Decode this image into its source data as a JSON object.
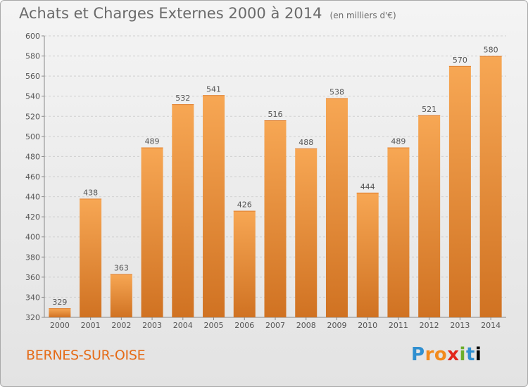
{
  "header": {
    "title": "Achats et Charges Externes 2000 à 2014",
    "unit": "(en milliers d'€)"
  },
  "footer": {
    "commune": "BERNES-SUR-OISE",
    "logo": "Proxiti"
  },
  "colors": {
    "bar_light": "#f7a754",
    "bar_dark": "#d07222",
    "axis_text": "#555555",
    "title_text": "#6a6a6a",
    "commune_text": "#e56b17"
  },
  "chart_data": {
    "type": "bar",
    "categories": [
      "2000",
      "2001",
      "2002",
      "2003",
      "2004",
      "2005",
      "2006",
      "2007",
      "2008",
      "2009",
      "2010",
      "2011",
      "2012",
      "2013",
      "2014"
    ],
    "values": [
      329,
      438,
      363,
      489,
      532,
      541,
      426,
      516,
      488,
      538,
      444,
      489,
      521,
      570,
      580
    ],
    "ylim": [
      320,
      600
    ],
    "yticks": [
      320,
      340,
      360,
      380,
      400,
      420,
      440,
      460,
      480,
      500,
      520,
      540,
      560,
      580,
      600
    ],
    "grid": true,
    "data_labels": true
  }
}
